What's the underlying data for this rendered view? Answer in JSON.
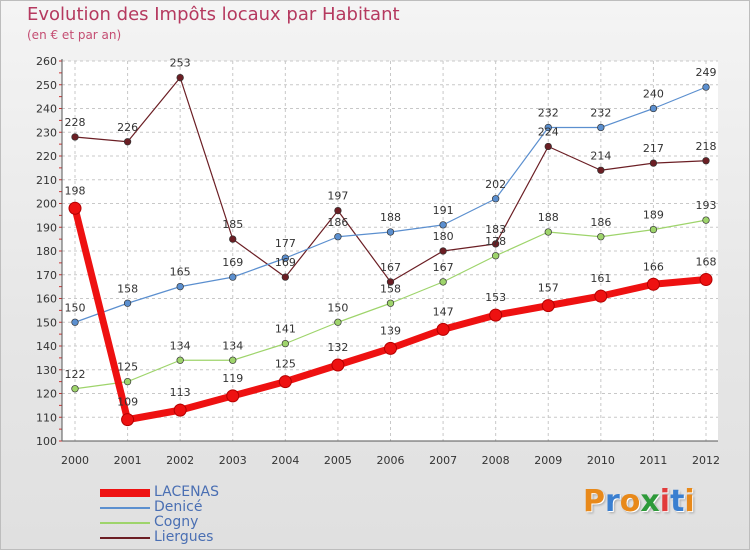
{
  "header": {
    "title": "Evolution des Impôts locaux par Habitant",
    "subtitle": "(en € et par an)"
  },
  "chart_data": {
    "type": "line",
    "title": "Evolution des Impôts locaux par Habitant",
    "subtitle": "(en € et par an)",
    "xlabel": "",
    "ylabel": "",
    "ylim": [
      100,
      260
    ],
    "y_ticks": [
      100,
      110,
      120,
      130,
      140,
      150,
      160,
      170,
      180,
      190,
      200,
      210,
      220,
      230,
      240,
      250,
      260
    ],
    "x": [
      "2000",
      "2001",
      "2002",
      "2003",
      "2004",
      "2005",
      "2006",
      "2007",
      "2008",
      "2009",
      "2010",
      "2011",
      "2012"
    ],
    "grid": true,
    "legend_position": "bottom-left",
    "series": [
      {
        "name": "LACENAS",
        "color": "#ee1111",
        "values": [
          198,
          109,
          113,
          119,
          125,
          132,
          139,
          147,
          153,
          157,
          161,
          166,
          168
        ]
      },
      {
        "name": "Denicé",
        "color": "#5b8fcf",
        "values": [
          150,
          158,
          165,
          169,
          177,
          186,
          188,
          191,
          202,
          232,
          232,
          240,
          249
        ]
      },
      {
        "name": "Cogny",
        "color": "#9ed46b",
        "values": [
          122,
          125,
          134,
          134,
          141,
          150,
          158,
          167,
          178,
          188,
          186,
          189,
          193
        ]
      },
      {
        "name": "Liergues",
        "color": "#6b1e24",
        "values": [
          228,
          226,
          253,
          185,
          169,
          197,
          167,
          180,
          183,
          224,
          214,
          217,
          218
        ]
      }
    ]
  },
  "logo": {
    "letters": [
      "P",
      "r",
      "o",
      "x",
      "i",
      "t",
      "i"
    ],
    "colors": [
      "#e8891a",
      "#3a7fd0",
      "#e8891a",
      "#2e9a3a",
      "#e23b3b",
      "#3a7fd0",
      "#e8891a"
    ]
  }
}
